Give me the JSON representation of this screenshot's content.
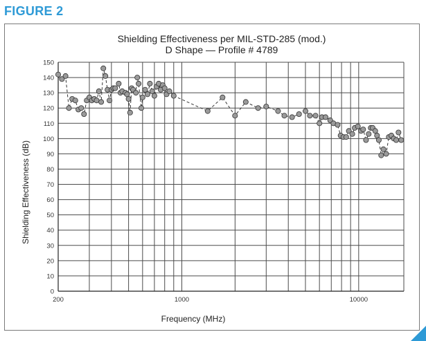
{
  "page": {
    "figure_label": "FIGURE 2",
    "accent_color": "#2e9ad6"
  },
  "chart_data": {
    "type": "scatter",
    "title": "Shielding Effectiveness per MIL-STD-285 (mod.)",
    "subtitle": "D Shape — Profile # 4789",
    "xlabel": "Frequency (MHz)",
    "ylabel": "Shielding Effectiveness (dB)",
    "x_scale": "log",
    "xlim": [
      200,
      18000
    ],
    "ylim": [
      0,
      150
    ],
    "x_ticks": [
      {
        "value": 200,
        "label": "200"
      },
      {
        "value": 1000,
        "label": "1000"
      },
      {
        "value": 10000,
        "label": "10000"
      }
    ],
    "x_minor_gridlines": [
      300,
      400,
      500,
      600,
      700,
      800,
      900,
      2000,
      3000,
      4000,
      5000,
      6000,
      7000,
      8000,
      9000
    ],
    "y_ticks": [
      0,
      10,
      20,
      30,
      40,
      50,
      60,
      70,
      80,
      90,
      100,
      110,
      120,
      130,
      140,
      150
    ],
    "grid": true,
    "marker_color": "#9a9a9a",
    "line_style": "dashed",
    "series": [
      {
        "points": [
          [
            200,
            142
          ],
          [
            210,
            139
          ],
          [
            220,
            141
          ],
          [
            230,
            120
          ],
          [
            240,
            126
          ],
          [
            250,
            125
          ],
          [
            260,
            119
          ],
          [
            270,
            120
          ],
          [
            280,
            116
          ],
          [
            290,
            125
          ],
          [
            300,
            127
          ],
          [
            310,
            125
          ],
          [
            320,
            126
          ],
          [
            330,
            125
          ],
          [
            340,
            131
          ],
          [
            350,
            124
          ],
          [
            360,
            146
          ],
          [
            370,
            141
          ],
          [
            380,
            132
          ],
          [
            390,
            125
          ],
          [
            400,
            132
          ],
          [
            410,
            133
          ],
          [
            420,
            133
          ],
          [
            440,
            136
          ],
          [
            450,
            130
          ],
          [
            460,
            131
          ],
          [
            480,
            130
          ],
          [
            490,
            129
          ],
          [
            500,
            126
          ],
          [
            510,
            117
          ],
          [
            520,
            133
          ],
          [
            530,
            132
          ],
          [
            550,
            130
          ],
          [
            560,
            140
          ],
          [
            570,
            136
          ],
          [
            590,
            120
          ],
          [
            600,
            127
          ],
          [
            620,
            132
          ],
          [
            640,
            129
          ],
          [
            660,
            136
          ],
          [
            680,
            131
          ],
          [
            700,
            128
          ],
          [
            720,
            134
          ],
          [
            740,
            136
          ],
          [
            760,
            132
          ],
          [
            780,
            135
          ],
          [
            800,
            133
          ],
          [
            820,
            129
          ],
          [
            850,
            131
          ],
          [
            900,
            128
          ],
          [
            1400,
            118
          ],
          [
            1700,
            127
          ],
          [
            2000,
            115
          ],
          [
            2300,
            124
          ],
          [
            2700,
            120
          ],
          [
            3000,
            121
          ],
          [
            3500,
            118
          ],
          [
            3800,
            115
          ],
          [
            4200,
            114
          ],
          [
            4600,
            116
          ],
          [
            5000,
            118
          ],
          [
            5300,
            115
          ],
          [
            5700,
            115
          ],
          [
            6000,
            110
          ],
          [
            6200,
            114
          ],
          [
            6500,
            114
          ],
          [
            6900,
            112
          ],
          [
            7200,
            110
          ],
          [
            7600,
            109
          ],
          [
            7900,
            102
          ],
          [
            8200,
            101
          ],
          [
            8500,
            101
          ],
          [
            8800,
            105
          ],
          [
            9200,
            103
          ],
          [
            9500,
            107
          ],
          [
            9900,
            108
          ],
          [
            10300,
            105
          ],
          [
            10600,
            106
          ],
          [
            11000,
            99
          ],
          [
            11400,
            103
          ],
          [
            11700,
            107
          ],
          [
            12000,
            107
          ],
          [
            12400,
            105
          ],
          [
            12700,
            102
          ],
          [
            13000,
            99
          ],
          [
            13400,
            89
          ],
          [
            13800,
            93
          ],
          [
            14300,
            90
          ],
          [
            14800,
            101
          ],
          [
            15300,
            102
          ],
          [
            15800,
            100
          ],
          [
            16300,
            99
          ],
          [
            16800,
            104
          ],
          [
            17400,
            99
          ]
        ]
      }
    ]
  }
}
